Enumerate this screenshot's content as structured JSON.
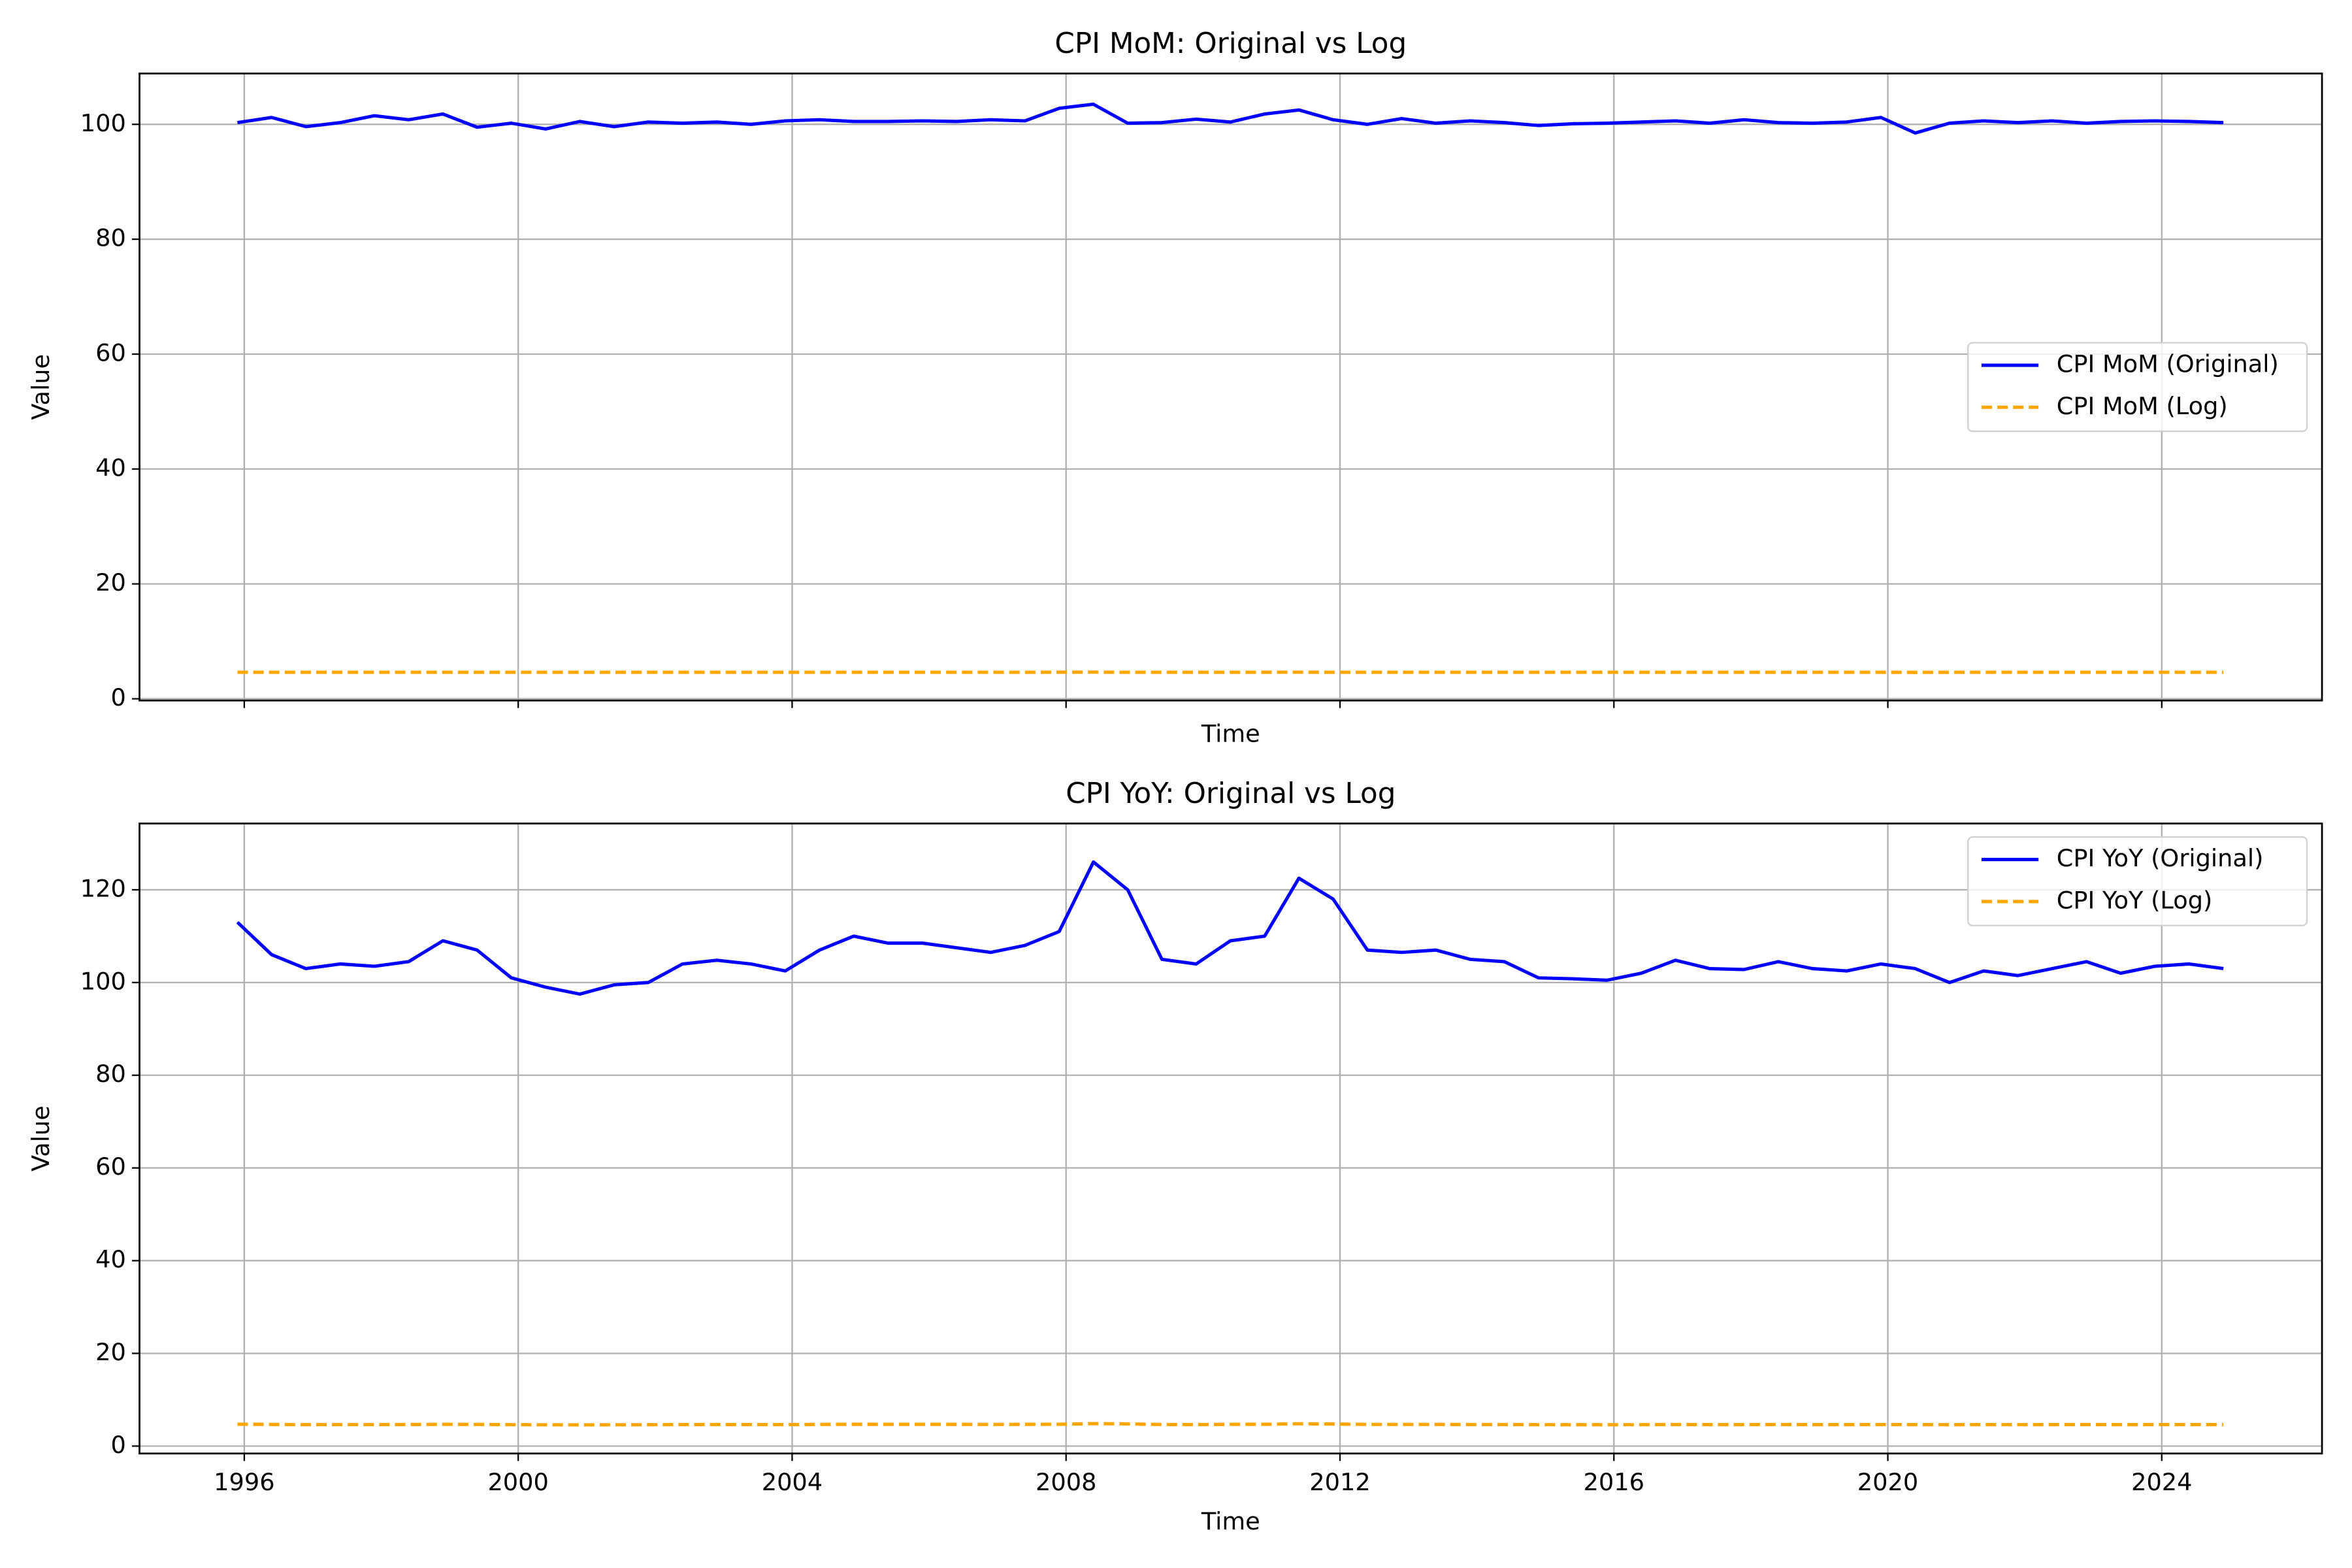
{
  "chart_data": [
    {
      "type": "line",
      "title": "CPI MoM: Original vs Log",
      "xlabel": "Time",
      "ylabel": "Value",
      "x": [
        1995.9,
        1996.4,
        1996.9,
        1997.4,
        1997.9,
        1998.4,
        1998.9,
        1999.4,
        1999.9,
        2000.4,
        2000.9,
        2001.4,
        2001.9,
        2002.4,
        2002.9,
        2003.4,
        2003.9,
        2004.4,
        2004.9,
        2005.4,
        2005.9,
        2006.4,
        2006.9,
        2007.4,
        2007.9,
        2008.4,
        2008.9,
        2009.4,
        2009.9,
        2010.4,
        2010.9,
        2011.4,
        2011.9,
        2012.4,
        2012.9,
        2013.4,
        2013.9,
        2014.4,
        2014.9,
        2015.4,
        2015.9,
        2016.4,
        2016.9,
        2017.4,
        2017.9,
        2018.4,
        2018.9,
        2019.4,
        2019.9,
        2020.4,
        2020.9,
        2021.4,
        2021.9,
        2022.4,
        2022.9,
        2023.4,
        2023.9,
        2024.4,
        2024.9
      ],
      "series": [
        {
          "name": "CPI MoM (Original)",
          "color": "#0000ff",
          "dash": false,
          "values": [
            100.3,
            101.2,
            99.6,
            100.3,
            101.5,
            100.8,
            101.8,
            99.5,
            100.2,
            99.2,
            100.5,
            99.6,
            100.4,
            100.2,
            100.4,
            100.0,
            100.6,
            100.8,
            100.5,
            100.5,
            100.6,
            100.5,
            100.8,
            100.6,
            102.8,
            103.5,
            100.2,
            100.3,
            100.9,
            100.4,
            101.8,
            102.5,
            100.8,
            100.0,
            101.0,
            100.2,
            100.6,
            100.3,
            99.8,
            100.1,
            100.2,
            100.4,
            100.6,
            100.2,
            100.8,
            100.3,
            100.2,
            100.4,
            101.2,
            98.5,
            100.2,
            100.6,
            100.3,
            100.6,
            100.2,
            100.5,
            100.6,
            100.5,
            100.3
          ]
        },
        {
          "name": "CPI MoM (Log)",
          "color": "#ffa500",
          "dash": true,
          "values": [
            4.61,
            4.61,
            4.61,
            4.61,
            4.61,
            4.61,
            4.61,
            4.61,
            4.61,
            4.61,
            4.61,
            4.61,
            4.61,
            4.61,
            4.61,
            4.61,
            4.61,
            4.61,
            4.61,
            4.61,
            4.61,
            4.61,
            4.61,
            4.61,
            4.63,
            4.64,
            4.61,
            4.61,
            4.61,
            4.61,
            4.62,
            4.63,
            4.61,
            4.61,
            4.61,
            4.61,
            4.61,
            4.61,
            4.61,
            4.61,
            4.61,
            4.61,
            4.61,
            4.61,
            4.61,
            4.61,
            4.61,
            4.61,
            4.61,
            4.59,
            4.61,
            4.61,
            4.61,
            4.61,
            4.61,
            4.61,
            4.61,
            4.61,
            4.61
          ]
        }
      ],
      "xlim": [
        1994.47,
        2026.34
      ],
      "ylim": [
        -0.3,
        108.85
      ],
      "yticks": [
        0,
        20,
        40,
        60,
        80,
        100
      ],
      "grid": true,
      "legend": "center right"
    },
    {
      "type": "line",
      "title": "CPI YoY: Original vs Log",
      "xlabel": "Time",
      "ylabel": "Value",
      "x": [
        1995.9,
        1996.4,
        1996.9,
        1997.4,
        1997.9,
        1998.4,
        1998.9,
        1999.4,
        1999.9,
        2000.4,
        2000.9,
        2001.4,
        2001.9,
        2002.4,
        2002.9,
        2003.4,
        2003.9,
        2004.4,
        2004.9,
        2005.4,
        2005.9,
        2006.4,
        2006.9,
        2007.4,
        2007.9,
        2008.4,
        2008.9,
        2009.4,
        2009.9,
        2010.4,
        2010.9,
        2011.4,
        2011.9,
        2012.4,
        2012.9,
        2013.4,
        2013.9,
        2014.4,
        2014.9,
        2015.4,
        2015.9,
        2016.4,
        2016.9,
        2017.4,
        2017.9,
        2018.4,
        2018.9,
        2019.4,
        2019.9,
        2020.4,
        2020.9,
        2021.4,
        2021.9,
        2022.4,
        2022.9,
        2023.4,
        2023.9,
        2024.4,
        2024.9
      ],
      "series": [
        {
          "name": "CPI YoY (Original)",
          "color": "#0000ff",
          "dash": false,
          "values": [
            113,
            106,
            103,
            104,
            103.5,
            104.5,
            109,
            107,
            101,
            99,
            97.5,
            99.5,
            100,
            104,
            104.8,
            104,
            102.5,
            107,
            110,
            108.5,
            108.5,
            107.5,
            106.5,
            108,
            111,
            126,
            120,
            105,
            104,
            109,
            110,
            122.5,
            118,
            107,
            106.5,
            107,
            105,
            104.5,
            101,
            100.8,
            100.5,
            102,
            104.8,
            103,
            102.8,
            104.5,
            103,
            102.5,
            104,
            103,
            100,
            102.5,
            101.5,
            103,
            104.5,
            102,
            103.5,
            104,
            103
          ]
        },
        {
          "name": "CPI YoY (Log)",
          "color": "#ffa500",
          "dash": true,
          "values": [
            4.73,
            4.66,
            4.63,
            4.64,
            4.64,
            4.65,
            4.69,
            4.67,
            4.62,
            4.6,
            4.58,
            4.6,
            4.61,
            4.64,
            4.65,
            4.64,
            4.63,
            4.67,
            4.7,
            4.69,
            4.69,
            4.68,
            4.67,
            4.68,
            4.71,
            4.84,
            4.79,
            4.65,
            4.64,
            4.69,
            4.7,
            4.81,
            4.77,
            4.67,
            4.67,
            4.67,
            4.65,
            4.65,
            4.62,
            4.61,
            4.61,
            4.62,
            4.65,
            4.63,
            4.63,
            4.65,
            4.63,
            4.63,
            4.64,
            4.63,
            4.61,
            4.63,
            4.62,
            4.63,
            4.65,
            4.62,
            4.64,
            4.64,
            4.63
          ]
        }
      ],
      "xlim": [
        1994.47,
        2026.34
      ],
      "ylim": [
        -1.6,
        134.3
      ],
      "yticks": [
        0,
        20,
        40,
        60,
        80,
        100,
        120
      ],
      "xticks": [
        1996,
        2000,
        2004,
        2008,
        2012,
        2016,
        2020,
        2024
      ],
      "grid": true,
      "legend": "upper right"
    }
  ]
}
